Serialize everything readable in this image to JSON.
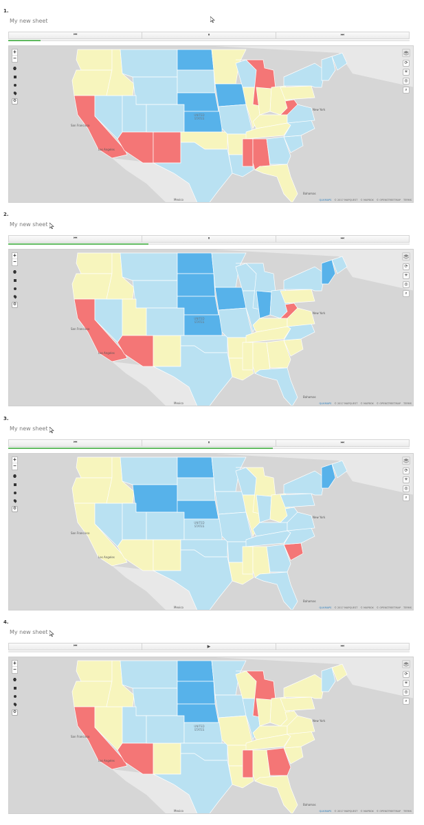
{
  "sheet_title": "My new sheet",
  "colors": {
    "high": "#57b2ea",
    "mid": "#b9e1f2",
    "neutral": "#f7f5bd",
    "low": "#f47676",
    "land": "#e8e8e8",
    "water": "#d6d6d6"
  },
  "map_labels": {
    "country": "UNITED STATES",
    "mexico": "Mexico",
    "bahamas": "Bahamas",
    "san_francisco": "San Francisco",
    "los_angeles": "Los Angeles",
    "new_york": "New York"
  },
  "attribution": {
    "logo": "QLIKMAPS",
    "copyright": "© 2017 MAPQUEST",
    "mapbox": "© MAPBOX",
    "osm": "© OPENSTREETMAP",
    "terms": "TERMS"
  },
  "panels": [
    {
      "number": "1.",
      "title": "My new sheet",
      "controls": {
        "back": "⏮",
        "toggle": "⏸",
        "forward": "⏭"
      },
      "progress": 0.08,
      "map_icons": {
        "zoom_in": "+",
        "zoom_out": "−"
      },
      "states": {
        "WA": "neutral",
        "OR": "neutral",
        "CA": "low",
        "NV": "mid",
        "ID": "neutral",
        "MT": "mid",
        "WY": "mid",
        "UT": "mid",
        "AZ": "low",
        "NM": "low",
        "CO": "mid",
        "ND": "high",
        "SD": "mid",
        "NE": "high",
        "KS": "high",
        "OK": "neutral",
        "TX": "mid",
        "MN": "neutral",
        "IA": "high",
        "MO": "mid",
        "AR": "neutral",
        "LA": "mid",
        "WI": "mid",
        "IL": "neutral",
        "MI": "low",
        "IN": "neutral",
        "OH": "neutral",
        "KY": "neutral",
        "TN": "neutral",
        "MS": "low",
        "AL": "low",
        "GA": "mid",
        "FL": "neutral",
        "SC": "mid",
        "NC": "mid",
        "VA": "mid",
        "WV": "low",
        "PA": "neutral",
        "NY": "mid",
        "NE_REGION": "mid",
        "ME": "mid"
      }
    },
    {
      "number": "2.",
      "title": "My new sheet",
      "controls": {
        "back": "⏮",
        "toggle": "⏸",
        "forward": "⏭"
      },
      "progress": 0.35,
      "map_icons": {
        "zoom_in": "+",
        "zoom_out": "−"
      },
      "states": {
        "WA": "neutral",
        "OR": "neutral",
        "CA": "low",
        "NV": "mid",
        "ID": "neutral",
        "MT": "mid",
        "WY": "mid",
        "UT": "neutral",
        "AZ": "low",
        "NM": "neutral",
        "CO": "mid",
        "ND": "high",
        "SD": "high",
        "NE": "high",
        "KS": "high",
        "OK": "mid",
        "TX": "mid",
        "MN": "mid",
        "IA": "high",
        "MO": "mid",
        "AR": "neutral",
        "LA": "neutral",
        "WI": "mid",
        "IL": "mid",
        "MI": "mid",
        "IN": "high",
        "OH": "mid",
        "KY": "neutral",
        "TN": "neutral",
        "MS": "neutral",
        "AL": "neutral",
        "GA": "neutral",
        "FL": "mid",
        "SC": "neutral",
        "NC": "mid",
        "VA": "neutral",
        "WV": "low",
        "PA": "neutral",
        "NY": "mid",
        "NE_REGION": "high",
        "ME": "mid"
      }
    },
    {
      "number": "3.",
      "title": "My new sheet",
      "controls": {
        "back": "⏮",
        "toggle": "⏸",
        "forward": "⏭"
      },
      "progress": 0.66,
      "map_icons": {
        "zoom_in": "+",
        "zoom_out": "−"
      },
      "states": {
        "WA": "neutral",
        "OR": "neutral",
        "CA": "neutral",
        "NV": "mid",
        "ID": "neutral",
        "MT": "mid",
        "WY": "high",
        "UT": "mid",
        "AZ": "neutral",
        "NM": "neutral",
        "CO": "mid",
        "ND": "high",
        "SD": "mid",
        "NE": "high",
        "KS": "mid",
        "OK": "mid",
        "TX": "mid",
        "MN": "mid",
        "IA": "mid",
        "MO": "mid",
        "AR": "mid",
        "LA": "neutral",
        "WI": "mid",
        "IL": "neutral",
        "MI": "neutral",
        "IN": "mid",
        "OH": "neutral",
        "KY": "mid",
        "TN": "mid",
        "MS": "neutral",
        "AL": "neutral",
        "GA": "mid",
        "FL": "mid",
        "SC": "low",
        "NC": "mid",
        "VA": "mid",
        "WV": "mid",
        "PA": "mid",
        "NY": "mid",
        "NE_REGION": "high",
        "ME": "mid"
      }
    },
    {
      "number": "4.",
      "title": "My new sheet",
      "controls": {
        "back": "⏮",
        "toggle": "▶",
        "forward": "⏭"
      },
      "progress": 0.0,
      "map_icons": {
        "zoom_in": "+",
        "zoom_out": "−"
      },
      "states": {
        "WA": "neutral",
        "OR": "neutral",
        "CA": "low",
        "NV": "neutral",
        "ID": "neutral",
        "MT": "mid",
        "WY": "mid",
        "UT": "mid",
        "AZ": "low",
        "NM": "neutral",
        "CO": "mid",
        "ND": "high",
        "SD": "high",
        "NE": "high",
        "KS": "mid",
        "OK": "mid",
        "TX": "mid",
        "MN": "mid",
        "IA": "mid",
        "MO": "neutral",
        "AR": "neutral",
        "LA": "neutral",
        "WI": "neutral",
        "IL": "mid",
        "MI": "low",
        "IN": "neutral",
        "OH": "neutral",
        "KY": "neutral",
        "TN": "neutral",
        "MS": "low",
        "AL": "neutral",
        "GA": "low",
        "FL": "neutral",
        "SC": "neutral",
        "NC": "neutral",
        "VA": "neutral",
        "WV": "neutral",
        "PA": "neutral",
        "NY": "neutral",
        "NE_REGION": "mid",
        "ME": "neutral"
      }
    }
  ]
}
